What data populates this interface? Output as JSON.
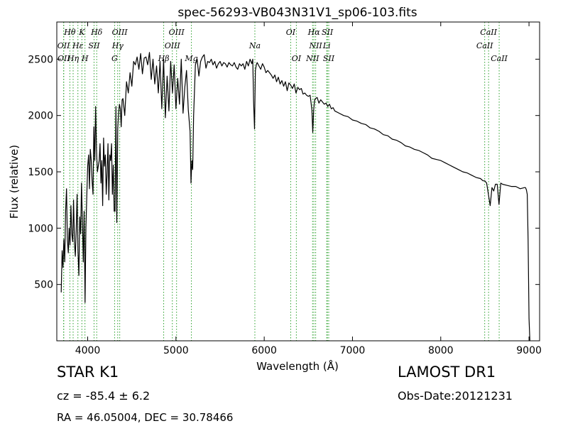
{
  "chart_data": {
    "type": "line",
    "title": "spec-56293-VB043N31V1_sp06-103.fits",
    "xlabel": "Wavelength (Å)",
    "ylabel": "Flux (relative)",
    "xlim": [
      3650,
      9120
    ],
    "ylim": [
      0,
      2830
    ],
    "xticks": [
      4000,
      5000,
      6000,
      7000,
      8000,
      9000
    ],
    "yticks": [
      500,
      1000,
      1500,
      2000,
      2500
    ],
    "grid": false,
    "line_color": "#000000",
    "marker_color": "#2ca02c",
    "spectrum": {
      "x": [
        3700,
        3710,
        3720,
        3730,
        3740,
        3750,
        3760,
        3770,
        3780,
        3790,
        3800,
        3810,
        3820,
        3830,
        3840,
        3850,
        3860,
        3870,
        3880,
        3890,
        3900,
        3910,
        3920,
        3930,
        3940,
        3950,
        3960,
        3970,
        3980,
        3990,
        4000,
        4010,
        4020,
        4030,
        4040,
        4050,
        4060,
        4070,
        4080,
        4090,
        4100,
        4110,
        4120,
        4130,
        4140,
        4150,
        4160,
        4170,
        4180,
        4190,
        4200,
        4210,
        4220,
        4230,
        4240,
        4250,
        4260,
        4270,
        4280,
        4290,
        4300,
        4310,
        4320,
        4330,
        4340,
        4350,
        4360,
        4370,
        4380,
        4390,
        4400,
        4420,
        4440,
        4460,
        4480,
        4500,
        4520,
        4540,
        4560,
        4580,
        4600,
        4620,
        4640,
        4660,
        4680,
        4700,
        4720,
        4740,
        4760,
        4780,
        4800,
        4820,
        4840,
        4860,
        4880,
        4900,
        4920,
        4940,
        4960,
        4980,
        5000,
        5020,
        5040,
        5060,
        5080,
        5100,
        5120,
        5140,
        5160,
        5170,
        5180,
        5190,
        5200,
        5220,
        5240,
        5260,
        5280,
        5300,
        5320,
        5340,
        5360,
        5380,
        5400,
        5420,
        5440,
        5460,
        5480,
        5500,
        5520,
        5540,
        5560,
        5580,
        5600,
        5620,
        5640,
        5660,
        5680,
        5700,
        5720,
        5740,
        5760,
        5780,
        5800,
        5820,
        5840,
        5860,
        5870,
        5880,
        5890,
        5900,
        5910,
        5920,
        5940,
        5960,
        5980,
        6000,
        6020,
        6040,
        6060,
        6080,
        6100,
        6120,
        6140,
        6160,
        6180,
        6200,
        6220,
        6240,
        6260,
        6280,
        6300,
        6320,
        6340,
        6360,
        6380,
        6400,
        6420,
        6440,
        6460,
        6480,
        6500,
        6520,
        6540,
        6550,
        6560,
        6570,
        6580,
        6600,
        6620,
        6640,
        6660,
        6680,
        6700,
        6720,
        6740,
        6760,
        6780,
        6800,
        6850,
        6900,
        6950,
        7000,
        7050,
        7100,
        7150,
        7200,
        7250,
        7300,
        7350,
        7400,
        7450,
        7500,
        7550,
        7600,
        7650,
        7700,
        7750,
        7800,
        7850,
        7900,
        7950,
        8000,
        8050,
        8100,
        8150,
        8200,
        8250,
        8300,
        8350,
        8400,
        8450,
        8480,
        8500,
        8520,
        8540,
        8560,
        8580,
        8600,
        8620,
        8640,
        8660,
        8680,
        8700,
        8750,
        8800,
        8850,
        8900,
        8950,
        8960,
        8970,
        8980,
        8990,
        9000,
        9010
      ],
      "y": [
        430,
        800,
        650,
        900,
        700,
        1150,
        1350,
        900,
        780,
        1000,
        850,
        1200,
        950,
        880,
        1250,
        870,
        750,
        980,
        1300,
        800,
        580,
        1100,
        950,
        1400,
        1050,
        700,
        1150,
        340,
        1000,
        1300,
        1550,
        1650,
        1350,
        1700,
        1600,
        1420,
        1300,
        1900,
        1600,
        2080,
        1700,
        1500,
        1550,
        1600,
        1750,
        1400,
        1600,
        1200,
        1800,
        1550,
        1650,
        1300,
        1500,
        1750,
        1250,
        1650,
        1600,
        1750,
        1300,
        1560,
        1150,
        1150,
        2080,
        1050,
        1880,
        2020,
        2100,
        2060,
        1900,
        2140,
        2150,
        2000,
        2300,
        2200,
        2380,
        2260,
        2480,
        2450,
        2520,
        2410,
        2550,
        2370,
        2510,
        2520,
        2450,
        2560,
        2320,
        2500,
        2280,
        2440,
        2200,
        2480,
        2060,
        2500,
        1980,
        2350,
        2040,
        2480,
        2200,
        2450,
        2060,
        2330,
        2100,
        2500,
        2020,
        2250,
        2400,
        2050,
        1860,
        1400,
        1600,
        1520,
        2000,
        2450,
        2500,
        2350,
        2480,
        2520,
        2540,
        2420,
        2480,
        2470,
        2500,
        2450,
        2480,
        2420,
        2460,
        2480,
        2440,
        2470,
        2460,
        2430,
        2470,
        2450,
        2440,
        2470,
        2430,
        2410,
        2460,
        2440,
        2460,
        2410,
        2480,
        2440,
        2500,
        2460,
        2500,
        2120,
        1880,
        2400,
        2450,
        2470,
        2440,
        2410,
        2460,
        2430,
        2380,
        2400,
        2380,
        2360,
        2330,
        2360,
        2300,
        2340,
        2280,
        2310,
        2260,
        2300,
        2220,
        2290,
        2270,
        2240,
        2280,
        2200,
        2250,
        2230,
        2240,
        2190,
        2200,
        2180,
        2170,
        2180,
        2050,
        1850,
        2050,
        2130,
        2150,
        2160,
        2110,
        2140,
        2120,
        2100,
        2110,
        2080,
        2100,
        2060,
        2070,
        2040,
        2020,
        2000,
        1990,
        1960,
        1950,
        1930,
        1920,
        1890,
        1880,
        1860,
        1830,
        1820,
        1790,
        1780,
        1760,
        1730,
        1720,
        1700,
        1690,
        1670,
        1650,
        1620,
        1610,
        1600,
        1580,
        1560,
        1540,
        1520,
        1500,
        1490,
        1470,
        1450,
        1440,
        1420,
        1420,
        1400,
        1300,
        1200,
        1360,
        1330,
        1390,
        1390,
        1210,
        1400,
        1390,
        1380,
        1370,
        1370,
        1350,
        1360,
        1360,
        1340,
        1300,
        900,
        200,
        0
      ]
    },
    "line_markers": [
      {
        "label": "OII",
        "x": 3727,
        "row": 2
      },
      {
        "label": "OII",
        "x": 3729,
        "row": 3
      },
      {
        "label": "Hθ",
        "x": 3798,
        "row": 1
      },
      {
        "label": "Hη",
        "x": 3835,
        "row": 3
      },
      {
        "label": "Hε",
        "x": 3889,
        "row": 2
      },
      {
        "label": "K",
        "x": 3934,
        "row": 1
      },
      {
        "label": "SII",
        "x": 4072,
        "row": 2
      },
      {
        "label": "H",
        "x": 3969,
        "row": 3
      },
      {
        "label": "Hδ",
        "x": 4102,
        "row": 1
      },
      {
        "label": "Hγ",
        "x": 4340,
        "row": 2
      },
      {
        "label": "G",
        "x": 4305,
        "row": 3
      },
      {
        "label": "OIII",
        "x": 4363,
        "row": 1
      },
      {
        "label": "Hβ",
        "x": 4861,
        "row": 3
      },
      {
        "label": "OIII",
        "x": 4959,
        "row": 2
      },
      {
        "label": "OIII",
        "x": 5007,
        "row": 1
      },
      {
        "label": "Mg",
        "x": 5175,
        "row": 3
      },
      {
        "label": "Na",
        "x": 5894,
        "row": 2
      },
      {
        "label": "OI",
        "x": 6300,
        "row": 1
      },
      {
        "label": "OI",
        "x": 6364,
        "row": 3
      },
      {
        "label": "NII",
        "x": 6548,
        "row": 3
      },
      {
        "label": "Hα",
        "x": 6563,
        "row": 1
      },
      {
        "label": "NII",
        "x": 6583,
        "row": 2
      },
      {
        "label": "Li",
        "x": 6708,
        "row": 2
      },
      {
        "label": "SII",
        "x": 6716,
        "row": 1
      },
      {
        "label": "SII",
        "x": 6731,
        "row": 3
      },
      {
        "label": "CaII",
        "x": 8498,
        "row": 2
      },
      {
        "label": "CaII",
        "x": 8542,
        "row": 1
      },
      {
        "label": "CaII",
        "x": 8662,
        "row": 3
      }
    ]
  },
  "info": {
    "object_class": "STAR   K1",
    "survey": "LAMOST DR1",
    "redshift_line": "cz = -85.4 ± 6.2",
    "obs_date": "Obs-Date:20121231",
    "coordinates": "RA = 46.05004, DEC = 30.78466"
  }
}
